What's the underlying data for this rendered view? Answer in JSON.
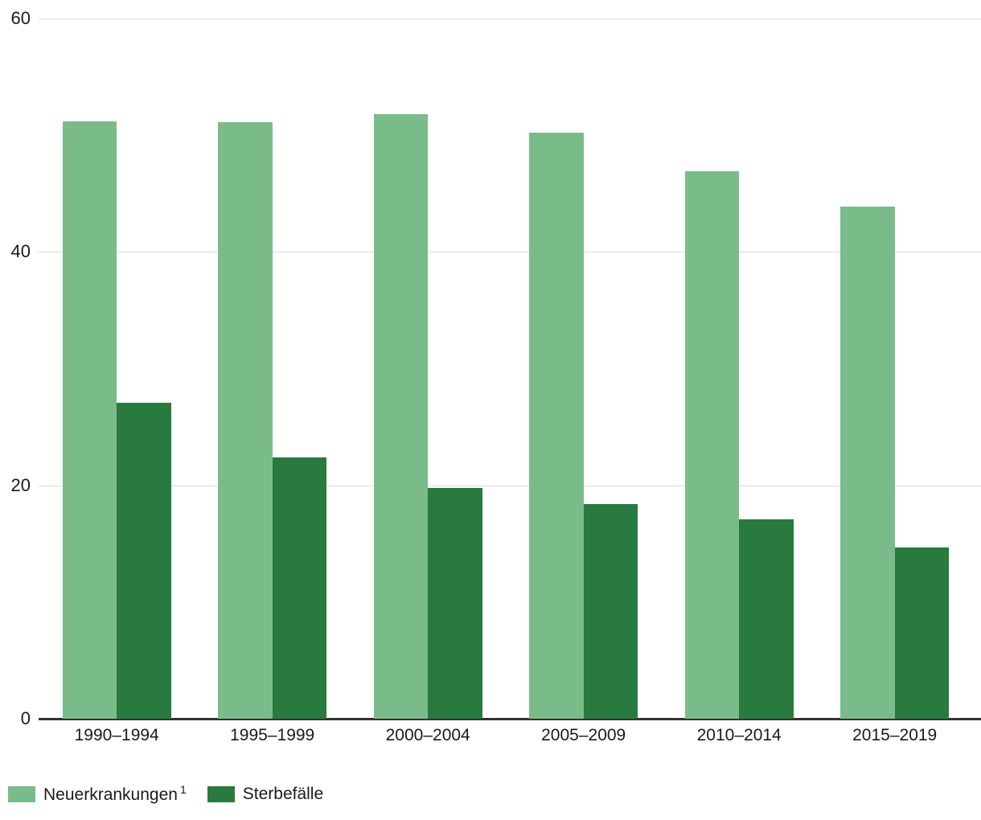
{
  "chart_data": {
    "type": "bar",
    "categories": [
      "1990–1994",
      "1995–1999",
      "2000–2004",
      "2005–2009",
      "2010–2014",
      "2015–2019"
    ],
    "series": [
      {
        "name": "Neuerkrankungen",
        "superscript": "1",
        "color": "#7abc89",
        "values": [
          51.2,
          51.1,
          51.8,
          50.2,
          46.9,
          43.9
        ]
      },
      {
        "name": "Sterbefälle",
        "color": "#287a3e",
        "values": [
          27.1,
          22.4,
          19.8,
          18.4,
          17.1,
          14.7
        ]
      }
    ],
    "ylim": [
      0,
      60
    ],
    "yticks": [
      0,
      20,
      40,
      60
    ],
    "grid": "horizontal",
    "legend_position": "bottom-left"
  },
  "colors": {
    "gridline": "#d9d9d9",
    "axis_line": "#333333",
    "text": "#1a1a1a",
    "background": "#ffffff"
  }
}
